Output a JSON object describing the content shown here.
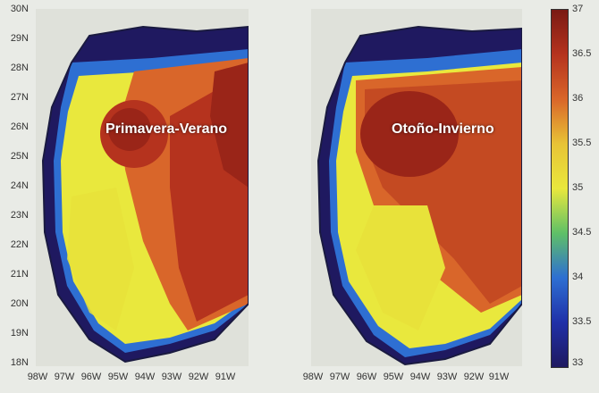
{
  "panels": [
    {
      "label": "Primavera-Verano"
    },
    {
      "label": "Otoño-Invierno"
    }
  ],
  "lat_labels": [
    "30N",
    "29N",
    "28N",
    "27N",
    "26N",
    "25N",
    "24N",
    "23N",
    "22N",
    "21N",
    "20N",
    "19N",
    "18N"
  ],
  "lon_labels_left": [
    "98W",
    "97W",
    "96W",
    "95W",
    "94W",
    "93W",
    "92W",
    "91W"
  ],
  "lon_labels_right": [
    "98W",
    "97W",
    "96W",
    "95W",
    "94W",
    "93W",
    "92W",
    "91W"
  ],
  "colorbar": {
    "ticks": [
      "37",
      "36.5",
      "36",
      "35.5",
      "35",
      "34.5",
      "34",
      "33.5",
      "33"
    ],
    "colors": [
      "#7a1a14",
      "#b5331e",
      "#d9662a",
      "#e8c336",
      "#e9e83d",
      "#5fc067",
      "#2e6fd2",
      "#2030a8",
      "#1f1960"
    ]
  }
}
